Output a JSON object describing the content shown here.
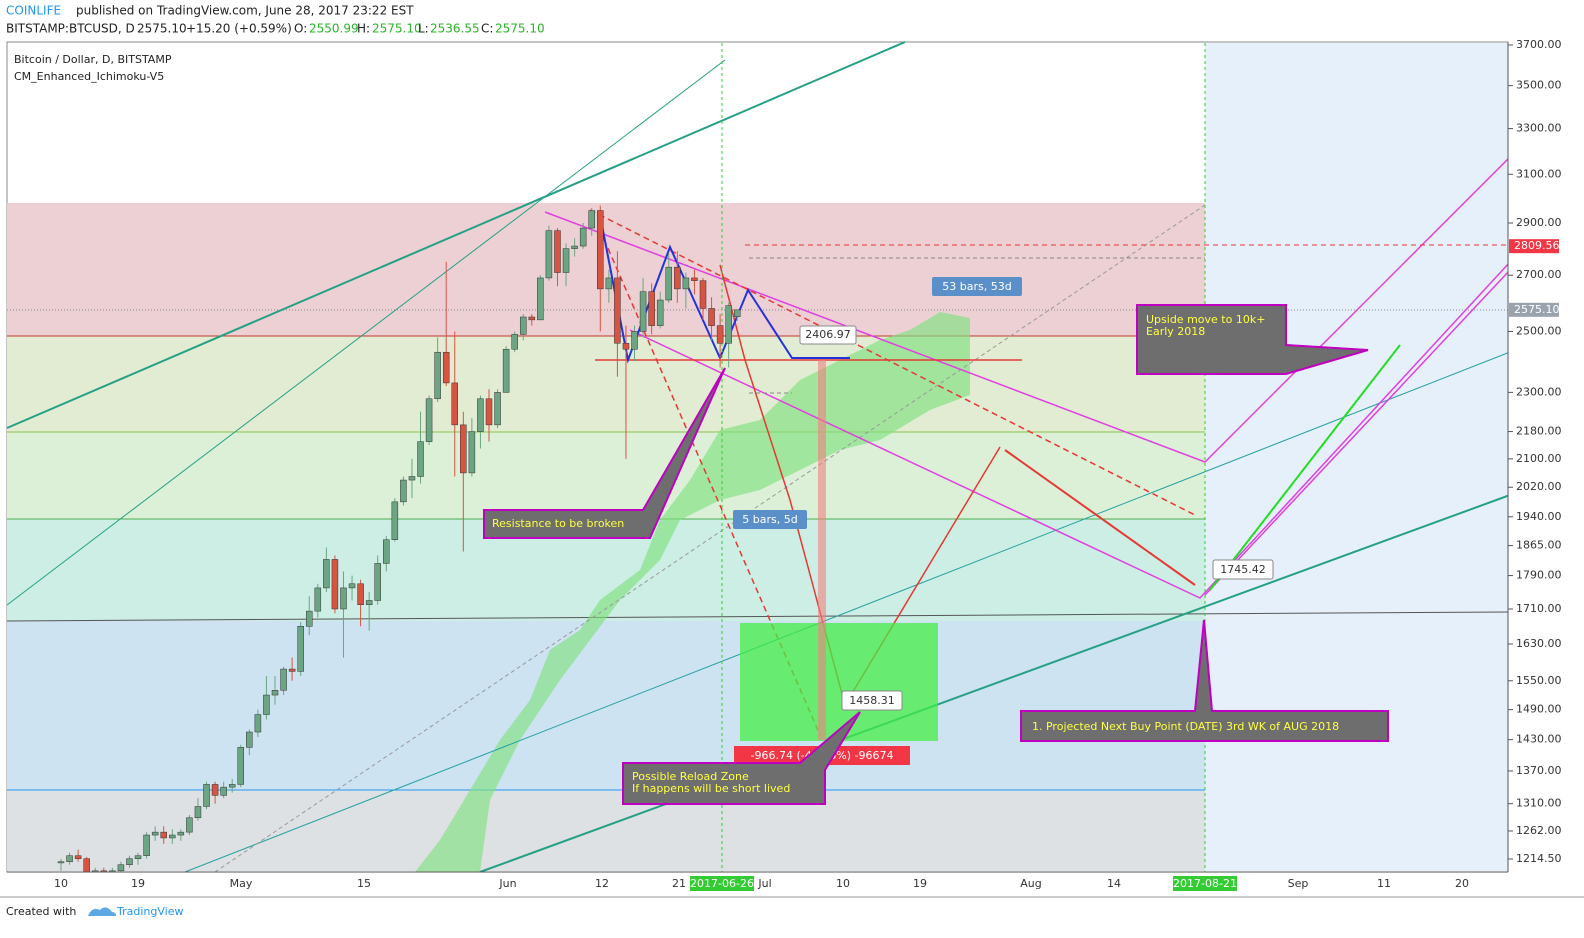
{
  "header": {
    "author": "COINLIFE",
    "published": "published on TradingView.com, June 28, 2017 23:22 EST",
    "symbol": "BITSTAMP:BTCUSD, D",
    "price": "2575.10",
    "change": "+15.20 (+0.59%)",
    "o_label": "O:",
    "o": "2550.99",
    "h_label": "H:",
    "h": "2575.10",
    "l_label": "L:",
    "l": "2536.55",
    "c_label": "C:",
    "c": "2575.10"
  },
  "legend": {
    "series": "Bitcoin / Dollar, D, BITSTAMP",
    "indicator": "CM_Enhanced_Ichimoku-V5"
  },
  "chart_data": {
    "type": "candlestick",
    "log_scale": true,
    "ylim": [
      1214.5,
      3700
    ],
    "yticks": [
      {
        "value": 3700,
        "label": "3700.00"
      },
      {
        "value": 3500,
        "label": "3500.00"
      },
      {
        "value": 3300,
        "label": "3300.00"
      },
      {
        "value": 3100,
        "label": "3100.00"
      },
      {
        "value": 2900,
        "label": "2900.00"
      },
      {
        "value": 2700,
        "label": "2700.00"
      },
      {
        "value": 2500,
        "label": "2500.00"
      },
      {
        "value": 2300,
        "label": "2300.00"
      },
      {
        "value": 2180,
        "label": "2180.00"
      },
      {
        "value": 2100,
        "label": "2100.00"
      },
      {
        "value": 2020,
        "label": "2020.00"
      },
      {
        "value": 1940,
        "label": "1940.00"
      },
      {
        "value": 1865,
        "label": "1865.00"
      },
      {
        "value": 1790,
        "label": "1790.00"
      },
      {
        "value": 1710,
        "label": "1710.00"
      },
      {
        "value": 1630,
        "label": "1630.00"
      },
      {
        "value": 1550,
        "label": "1550.00"
      },
      {
        "value": 1490,
        "label": "1490.00"
      },
      {
        "value": 1430,
        "label": "1430.00"
      },
      {
        "value": 1370,
        "label": "1370.00"
      },
      {
        "value": 1310,
        "label": "1310.00"
      },
      {
        "value": 1262,
        "label": "1262.00"
      },
      {
        "value": 1214.5,
        "label": "1214.50"
      }
    ],
    "price_marks": [
      {
        "value": 2809.56,
        "label": "2809.56",
        "color": "#f23645"
      },
      {
        "value": 2575.1,
        "label": "2575.10",
        "color": "#9aa3ad"
      }
    ],
    "x_labels": [
      "10",
      "19",
      "May",
      "15",
      "Jun",
      "12",
      "21",
      "2017-06-26",
      "Jul",
      "10",
      "19",
      "Aug",
      "14",
      "2017-08-21",
      "Sep",
      "11",
      "20"
    ],
    "up_color": "#6ba583",
    "down_color": "#d75442",
    "candles": [
      [
        1208,
        1215,
        1195,
        1210
      ],
      [
        1210,
        1225,
        1205,
        1220
      ],
      [
        1220,
        1230,
        1210,
        1215
      ],
      [
        1215,
        1218,
        1180,
        1190
      ],
      [
        1190,
        1200,
        1175,
        1195
      ],
      [
        1195,
        1200,
        1185,
        1190
      ],
      [
        1190,
        1200,
        1180,
        1195
      ],
      [
        1195,
        1210,
        1190,
        1205
      ],
      [
        1205,
        1220,
        1200,
        1215
      ],
      [
        1215,
        1225,
        1205,
        1220
      ],
      [
        1220,
        1260,
        1215,
        1255
      ],
      [
        1255,
        1270,
        1245,
        1260
      ],
      [
        1260,
        1270,
        1240,
        1250
      ],
      [
        1250,
        1265,
        1240,
        1255
      ],
      [
        1255,
        1265,
        1245,
        1260
      ],
      [
        1260,
        1290,
        1255,
        1285
      ],
      [
        1285,
        1320,
        1280,
        1305
      ],
      [
        1305,
        1350,
        1300,
        1345
      ],
      [
        1345,
        1350,
        1310,
        1325
      ],
      [
        1325,
        1350,
        1320,
        1340
      ],
      [
        1340,
        1355,
        1330,
        1345
      ],
      [
        1345,
        1420,
        1340,
        1415
      ],
      [
        1415,
        1450,
        1400,
        1445
      ],
      [
        1445,
        1490,
        1435,
        1480
      ],
      [
        1480,
        1560,
        1470,
        1520
      ],
      [
        1520,
        1560,
        1500,
        1530
      ],
      [
        1530,
        1580,
        1520,
        1575
      ],
      [
        1575,
        1600,
        1550,
        1570
      ],
      [
        1570,
        1680,
        1560,
        1670
      ],
      [
        1670,
        1740,
        1650,
        1705
      ],
      [
        1705,
        1770,
        1690,
        1760
      ],
      [
        1760,
        1860,
        1750,
        1830
      ],
      [
        1830,
        1840,
        1700,
        1710
      ],
      [
        1710,
        1800,
        1600,
        1760
      ],
      [
        1760,
        1790,
        1730,
        1770
      ],
      [
        1770,
        1780,
        1670,
        1720
      ],
      [
        1720,
        1750,
        1660,
        1730
      ],
      [
        1730,
        1840,
        1720,
        1820
      ],
      [
        1820,
        1890,
        1800,
        1880
      ],
      [
        1880,
        1990,
        1875,
        1980
      ],
      [
        1980,
        2050,
        1970,
        2040
      ],
      [
        2040,
        2100,
        1990,
        2050
      ],
      [
        2050,
        2240,
        2030,
        2150
      ],
      [
        2150,
        2290,
        2140,
        2280
      ],
      [
        2280,
        2480,
        2270,
        2430
      ],
      [
        2430,
        2750,
        2320,
        2330
      ],
      [
        2330,
        2500,
        2050,
        2200
      ],
      [
        2200,
        2240,
        1850,
        2060
      ],
      [
        2060,
        2220,
        2050,
        2180
      ],
      [
        2180,
        2290,
        2130,
        2280
      ],
      [
        2280,
        2310,
        2150,
        2200
      ],
      [
        2200,
        2310,
        2190,
        2300
      ],
      [
        2300,
        2450,
        2300,
        2440
      ],
      [
        2440,
        2500,
        2430,
        2490
      ],
      [
        2490,
        2560,
        2470,
        2550
      ],
      [
        2550,
        2560,
        2520,
        2540
      ],
      [
        2540,
        2700,
        2540,
        2690
      ],
      [
        2690,
        2890,
        2680,
        2870
      ],
      [
        2870,
        2880,
        2660,
        2710
      ],
      [
        2710,
        2820,
        2660,
        2800
      ],
      [
        2800,
        2840,
        2770,
        2810
      ],
      [
        2810,
        2900,
        2800,
        2880
      ],
      [
        2880,
        2960,
        2850,
        2950
      ],
      [
        2950,
        2970,
        2500,
        2650
      ],
      [
        2650,
        2720,
        2600,
        2690
      ],
      [
        2690,
        2790,
        2350,
        2460
      ],
      [
        2460,
        2520,
        2100,
        2440
      ],
      [
        2440,
        2520,
        2400,
        2500
      ],
      [
        2500,
        2690,
        2480,
        2640
      ],
      [
        2640,
        2670,
        2490,
        2520
      ],
      [
        2520,
        2640,
        2510,
        2610
      ],
      [
        2610,
        2780,
        2600,
        2730
      ],
      [
        2730,
        2790,
        2600,
        2650
      ],
      [
        2650,
        2710,
        2580,
        2690
      ],
      [
        2690,
        2720,
        2630,
        2680
      ],
      [
        2680,
        2690,
        2540,
        2580
      ],
      [
        2580,
        2620,
        2470,
        2520
      ],
      [
        2520,
        2560,
        2380,
        2460
      ],
      [
        2460,
        2600,
        2380,
        2590
      ],
      [
        2550.99,
        2575.1,
        2536.55,
        2575.1
      ]
    ]
  },
  "annotations": {
    "bars53": "53 bars, 53d",
    "p2406": "2406.97",
    "upside1": "Upside move to 10k+",
    "upside2": "Early 2018",
    "resistance": "Resistance to be broken",
    "bars5": "5 bars, 5d",
    "p1745": "1745.42",
    "p1458": "1458.31",
    "drop": "-966.74 (-40.26%) -96674",
    "reload1": "Possible Reload Zone",
    "reload2": "If happens will be short lived",
    "buy": "1. Projected Next Buy Point (DATE) 3rd WK of AUG 2018"
  },
  "footer": {
    "created": "Created with",
    "brand": "TradingView"
  }
}
